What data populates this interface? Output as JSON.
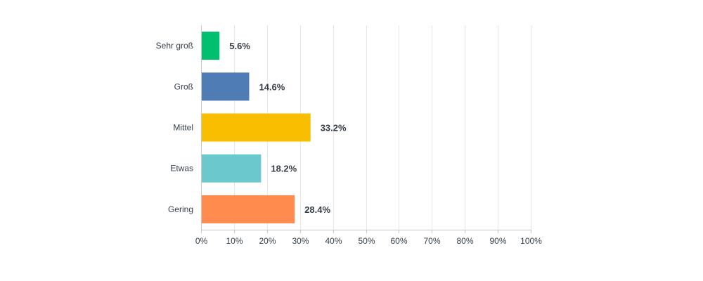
{
  "chart_data": {
    "type": "bar",
    "orientation": "horizontal",
    "categories": [
      "Sehr groß",
      "Groß",
      "Mittel",
      "Etwas",
      "Gering"
    ],
    "values": [
      5.6,
      14.6,
      33.2,
      18.2,
      28.4
    ],
    "value_labels": [
      "5.6%",
      "14.6%",
      "33.2%",
      "18.2%",
      "28.4%"
    ],
    "bar_colors": [
      "#00bf6f",
      "#507cb6",
      "#f9be00",
      "#6bc8cd",
      "#ff8b4f"
    ],
    "xlim": [
      0,
      100
    ],
    "x_ticks": [
      0,
      10,
      20,
      30,
      40,
      50,
      60,
      70,
      80,
      90,
      100
    ],
    "x_tick_labels": [
      "0%",
      "10%",
      "20%",
      "30%",
      "40%",
      "50%",
      "60%",
      "70%",
      "80%",
      "90%",
      "100%"
    ],
    "grid": true,
    "title": "",
    "xlabel": "",
    "ylabel": ""
  }
}
